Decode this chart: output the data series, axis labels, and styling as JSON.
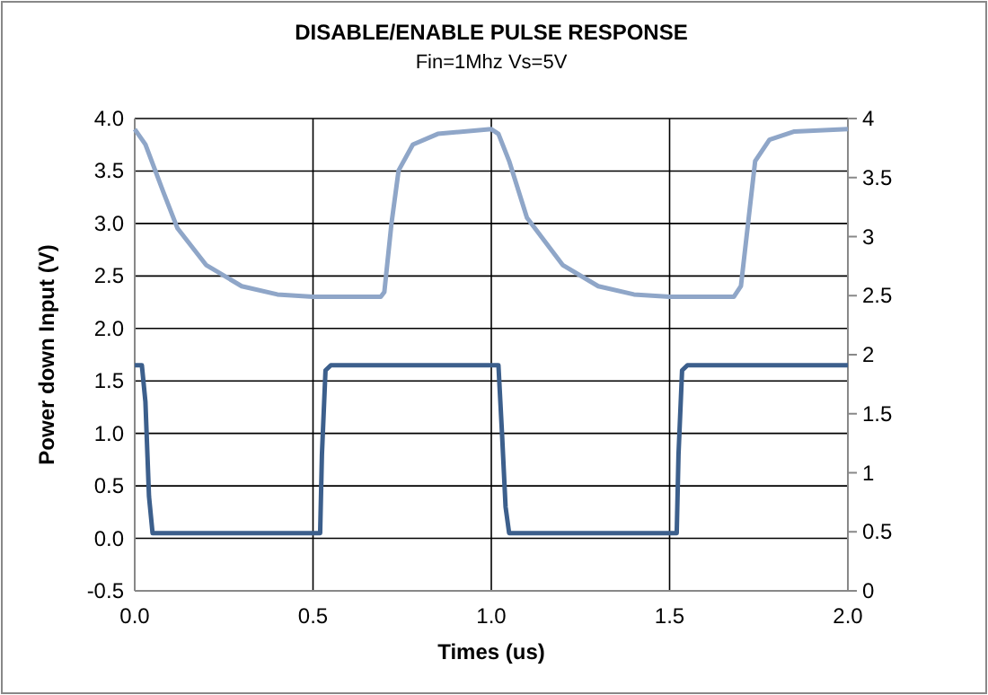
{
  "chart_data": {
    "type": "line",
    "title": "DISABLE/ENABLE PULSE RESPONSE",
    "subtitle": "Fin=1Mhz Vs=5V",
    "xlabel": "Times (us)",
    "ylabel": "Power down Input (V)",
    "xlim": [
      0,
      2
    ],
    "xticks": [
      {
        "value": 0,
        "label": "0.0"
      },
      {
        "value": 0.5,
        "label": "0.5"
      },
      {
        "value": 1,
        "label": "1.0"
      },
      {
        "value": 1.5,
        "label": "1.5"
      },
      {
        "value": 2,
        "label": "2.0"
      }
    ],
    "ylim": [
      -0.5,
      4
    ],
    "yticks": [
      {
        "value": -0.5,
        "label": "-0.5"
      },
      {
        "value": 0,
        "label": "0.0"
      },
      {
        "value": 0.5,
        "label": "0.5"
      },
      {
        "value": 1,
        "label": "1.0"
      },
      {
        "value": 1.5,
        "label": "1.5"
      },
      {
        "value": 2,
        "label": "2.0"
      },
      {
        "value": 2.5,
        "label": "2.5"
      },
      {
        "value": 3,
        "label": "3.0"
      },
      {
        "value": 3.5,
        "label": "3.5"
      },
      {
        "value": 4,
        "label": "4.0"
      }
    ],
    "y2lim": [
      0,
      4
    ],
    "y2ticks": [
      0,
      0.5,
      1,
      1.5,
      2,
      2.5,
      3,
      3.5,
      4
    ],
    "grid": true,
    "marker": "none",
    "line_style": "solid",
    "series": [
      {
        "color": "#8fa6c8",
        "axis": "y2",
        "x": [
          0,
          0.03,
          0.08,
          0.12,
          0.2,
          0.3,
          0.4,
          0.5,
          0.69,
          0.7,
          0.72,
          0.74,
          0.78,
          0.85,
          1,
          1.02,
          1.05,
          1.1,
          1.2,
          1.3,
          1.4,
          1.5,
          1.68,
          1.7,
          1.72,
          1.74,
          1.78,
          1.85,
          2
        ],
        "values": [
          3.91,
          3.78,
          3.38,
          3.07,
          2.76,
          2.58,
          2.51,
          2.49,
          2.49,
          2.53,
          3.11,
          3.56,
          3.78,
          3.87,
          3.91,
          3.87,
          3.64,
          3.16,
          2.76,
          2.58,
          2.51,
          2.49,
          2.49,
          2.58,
          3.11,
          3.64,
          3.82,
          3.89,
          3.91
        ]
      },
      {
        "color": "#3c5f8c",
        "x": [
          0,
          0.02,
          0.03,
          0.04,
          0.05,
          0.52,
          0.525,
          0.535,
          0.55,
          1.02,
          1.03,
          1.04,
          1.05,
          1.52,
          1.525,
          1.535,
          1.55,
          2
        ],
        "values": [
          1.65,
          1.65,
          1.3,
          0.4,
          0.05,
          0.05,
          0.8,
          1.6,
          1.65,
          1.65,
          1,
          0.3,
          0.05,
          0.05,
          0.8,
          1.6,
          1.65,
          1.65
        ]
      }
    ]
  }
}
